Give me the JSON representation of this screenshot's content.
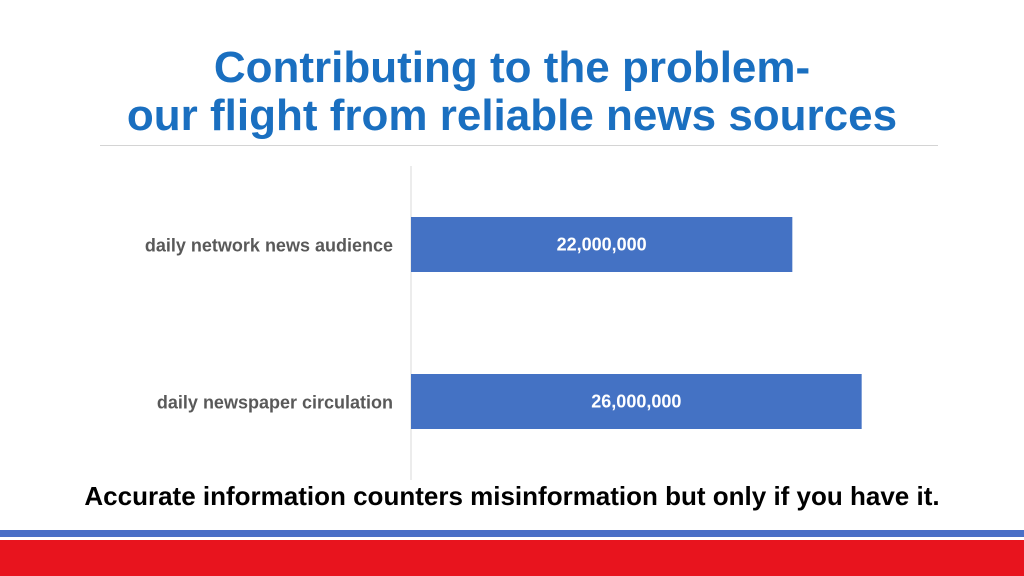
{
  "slide": {
    "title_line1": "Contributing to the problem-",
    "title_line2": "our flight from reliable news sources",
    "caption": "Accurate information counters misinformation but only if you have it."
  },
  "colors": {
    "title": "#1a6fc0",
    "bar": "#4472c4",
    "category_label": "#595959",
    "stripe_blue": "#4a6fc7",
    "stripe_red": "#e8141e"
  },
  "chart_data": {
    "type": "bar",
    "orientation": "horizontal",
    "categories": [
      "daily network news audience",
      "daily newspaper circulation"
    ],
    "values": [
      22000000,
      26000000
    ],
    "value_labels": [
      "22,000,000",
      "26,000,000"
    ],
    "xlim": [
      0,
      30000000
    ],
    "grid": false,
    "legend": "none"
  }
}
